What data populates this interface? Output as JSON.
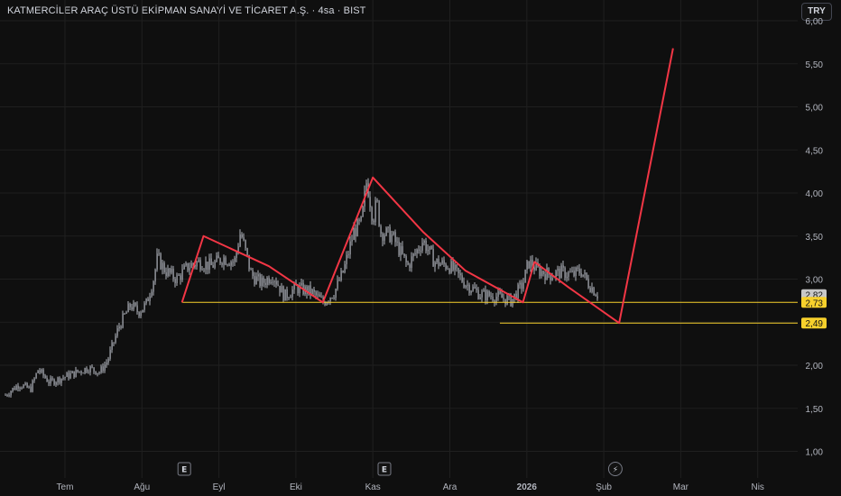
{
  "header": {
    "title": "KATMERCİLER ARAÇ ÜSTÜ EKİPMAN SANAYİ VE TİCARET A.Ş. · 4sa · BIST",
    "currency_button": "TRY"
  },
  "colors": {
    "background": "#0f0f0f",
    "grid": "#1f1f1f",
    "candles": "#b2b5be",
    "pattern_line": "#f23645",
    "support_line": "#f7d02c",
    "axis_text": "#b2b5be",
    "last_price_badge": "#c8c8c8"
  },
  "chart_data": {
    "type": "line",
    "subtype": "candlestick (4h), shown as price path with drawn pattern",
    "title": "KATMERCİLER ARAÇ ÜSTÜ EKİPMAN SANAYİ VE TİCARET A.Ş. · 4sa · BIST",
    "xlabel": "",
    "ylabel": "",
    "ylim": [
      0.9,
      6.05
    ],
    "y_ticks": [
      "1,00",
      "1,50",
      "2,00",
      "2,50",
      "3,00",
      "3,50",
      "4,00",
      "4,50",
      "5,00",
      "5,50",
      "6,00"
    ],
    "x_ticks": [
      "Tem",
      "Ağu",
      "Eyl",
      "Eki",
      "Kas",
      "Ara",
      "2026",
      "Şub",
      "Mar",
      "Nis"
    ],
    "x_tick_positions": [
      0,
      1,
      2,
      3,
      4,
      5,
      6,
      7,
      8,
      9
    ],
    "grid": true,
    "price_path": {
      "x": [
        -0.78,
        -0.6,
        -0.45,
        -0.35,
        -0.2,
        -0.05,
        0.1,
        0.3,
        0.45,
        0.55,
        0.7,
        0.85,
        0.95,
        1.05,
        1.15,
        1.2,
        1.3,
        1.45,
        1.6,
        1.75,
        1.9,
        2.05,
        2.2,
        2.28,
        2.35,
        2.42,
        2.55,
        2.7,
        2.85,
        3.0,
        3.2,
        3.35,
        3.5,
        3.62,
        3.75,
        3.85,
        3.92,
        4.0,
        4.05,
        4.1,
        4.25,
        4.45,
        4.65,
        4.8,
        5.0,
        5.2,
        5.4,
        5.6,
        5.8,
        5.95,
        6.02,
        6.15,
        6.3,
        6.45,
        6.6,
        6.7,
        6.8,
        6.92
      ],
      "y": [
        1.65,
        1.78,
        1.72,
        1.95,
        1.8,
        1.85,
        1.9,
        1.97,
        1.92,
        2.05,
        2.45,
        2.7,
        2.62,
        2.7,
        3.0,
        3.25,
        3.1,
        3.0,
        3.15,
        3.2,
        3.15,
        3.25,
        3.2,
        3.55,
        3.3,
        3.05,
        2.95,
        3.05,
        2.8,
        2.9,
        2.85,
        2.73,
        2.85,
        3.1,
        3.55,
        3.65,
        4.15,
        3.7,
        3.9,
        3.55,
        3.5,
        3.15,
        3.45,
        3.2,
        3.15,
        2.95,
        2.82,
        2.8,
        2.75,
        2.95,
        3.2,
        3.1,
        3.05,
        3.08,
        3.05,
        3.1,
        2.95,
        2.82
      ]
    },
    "series": [
      {
        "type": "line",
        "color": "#f23645",
        "x": [
          1.52,
          1.8,
          2.65,
          3.35,
          4.0,
          4.65,
          5.2,
          5.95,
          6.1,
          6.55,
          7.2,
          7.9
        ],
        "y": [
          2.73,
          3.5,
          3.15,
          2.73,
          4.18,
          3.55,
          3.1,
          2.73,
          3.2,
          2.9,
          2.49,
          5.68
        ]
      }
    ],
    "horizontal_lines": [
      {
        "value": 2.73,
        "x_start": 1.52,
        "label": "2,73",
        "color": "#f7d02c"
      },
      {
        "value": 2.49,
        "x_start": 5.65,
        "label": "2,49",
        "color": "#f7d02c"
      }
    ],
    "last_price": {
      "value": 2.82,
      "label": "2,82"
    },
    "event_markers": [
      {
        "x": 1.55,
        "label": "E"
      },
      {
        "x": 4.15,
        "label": "E"
      },
      {
        "x": 7.15,
        "label": "⚡"
      }
    ]
  }
}
